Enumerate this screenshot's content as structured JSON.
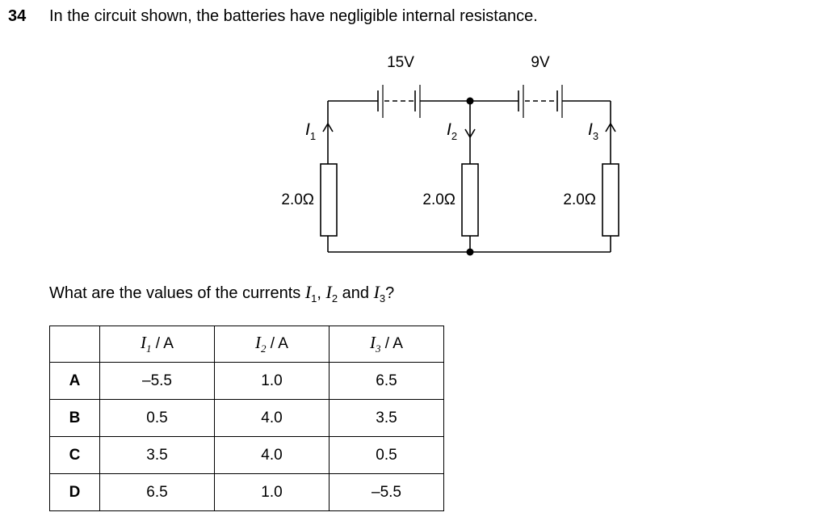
{
  "question": {
    "number": "34",
    "text": "In the circuit shown, the batteries have negligible internal resistance.",
    "sub_prefix": "What are the values of the currents ",
    "sub_mid1": ", ",
    "sub_mid2": " and ",
    "sub_suffix": "?"
  },
  "circuit": {
    "battery_left": "15V",
    "battery_right": "9V",
    "current_1": "I",
    "current_1_sub": "1",
    "current_2": "I",
    "current_2_sub": "2",
    "current_3": "I",
    "current_3_sub": "3",
    "resistor_left": "2.0Ω",
    "resistor_middle": "2.0Ω",
    "resistor_right": "2.0Ω"
  },
  "table": {
    "headers": [
      {
        "sym": "I",
        "sub": "1",
        "unit": " / A"
      },
      {
        "sym": "I",
        "sub": "2",
        "unit": " / A"
      },
      {
        "sym": "I",
        "sub": "3",
        "unit": " / A"
      }
    ],
    "rows": [
      {
        "letter": "A",
        "values": [
          "–5.5",
          "1.0",
          "6.5"
        ]
      },
      {
        "letter": "B",
        "values": [
          "0.5",
          "4.0",
          "3.5"
        ]
      },
      {
        "letter": "C",
        "values": [
          "3.5",
          "4.0",
          "0.5"
        ]
      },
      {
        "letter": "D",
        "values": [
          "6.5",
          "1.0",
          "–5.5"
        ]
      }
    ]
  }
}
